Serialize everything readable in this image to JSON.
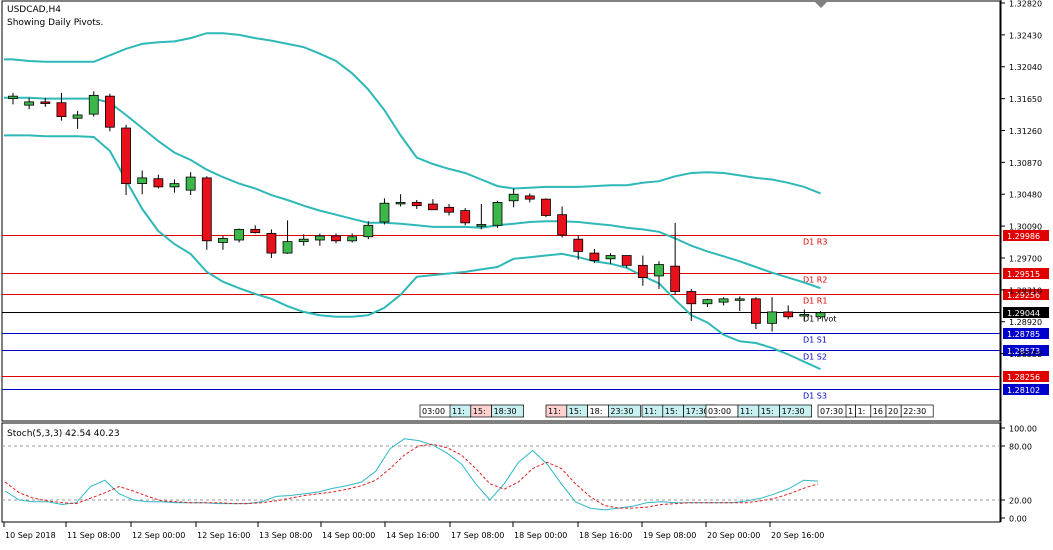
{
  "header": {
    "symbol": "USDCAD,H4",
    "subtitle": "Showing Daily Pivots."
  },
  "colors": {
    "bull": "#3cb84a",
    "bear": "#e8101a",
    "bollinger": "#2fb8b8",
    "resistance_line": "#e00000",
    "support_line": "#0000cc",
    "pivot_line": "#000000",
    "stoch_main": "#2fb8c8",
    "stoch_signal": "#e02020"
  },
  "chart_data": [
    {
      "type": "candlestick",
      "title": "USDCAD,H4",
      "ylim": [
        1.2795,
        1.3282
      ],
      "y_ticks": [
        1.3282,
        1.3243,
        1.3204,
        1.3165,
        1.3126,
        1.3087,
        1.3048,
        1.3009,
        1.297,
        1.2931,
        1.2892,
        1.2853
      ],
      "y_tick_labels": [
        "1.32820",
        "1.32430",
        "1.32040",
        "1.31650",
        "1.31260",
        "1.30870",
        "1.30480",
        "1.30090",
        "1.29700",
        "1.29310",
        "1.28920",
        "1.28530"
      ],
      "candles": [
        {
          "o": 1.3165,
          "h": 1.3172,
          "l": 1.3158,
          "c": 1.3168
        },
        {
          "o": 1.3157,
          "h": 1.3166,
          "l": 1.3152,
          "c": 1.3161
        },
        {
          "o": 1.3161,
          "h": 1.3166,
          "l": 1.3155,
          "c": 1.3159
        },
        {
          "o": 1.316,
          "h": 1.3172,
          "l": 1.3138,
          "c": 1.3143
        },
        {
          "o": 1.3141,
          "h": 1.315,
          "l": 1.3128,
          "c": 1.3145
        },
        {
          "o": 1.3146,
          "h": 1.3174,
          "l": 1.3143,
          "c": 1.3169
        },
        {
          "o": 1.3168,
          "h": 1.3171,
          "l": 1.3125,
          "c": 1.313
        },
        {
          "o": 1.3129,
          "h": 1.3133,
          "l": 1.3047,
          "c": 1.3061
        },
        {
          "o": 1.3061,
          "h": 1.3077,
          "l": 1.3048,
          "c": 1.3068
        },
        {
          "o": 1.3067,
          "h": 1.3072,
          "l": 1.3055,
          "c": 1.3057
        },
        {
          "o": 1.3057,
          "h": 1.3066,
          "l": 1.305,
          "c": 1.3061
        },
        {
          "o": 1.3053,
          "h": 1.3075,
          "l": 1.3047,
          "c": 1.3069
        },
        {
          "o": 1.3068,
          "h": 1.307,
          "l": 1.298,
          "c": 1.2991
        },
        {
          "o": 1.2989,
          "h": 1.2997,
          "l": 1.298,
          "c": 1.2994
        },
        {
          "o": 1.2992,
          "h": 1.3006,
          "l": 1.2989,
          "c": 1.3005
        },
        {
          "o": 1.3005,
          "h": 1.301,
          "l": 1.3,
          "c": 1.3001
        },
        {
          "o": 1.3,
          "h": 1.3005,
          "l": 1.297,
          "c": 1.2976
        },
        {
          "o": 1.2976,
          "h": 1.3016,
          "l": 1.2975,
          "c": 1.299
        },
        {
          "o": 1.299,
          "h": 1.2999,
          "l": 1.2985,
          "c": 1.2993
        },
        {
          "o": 1.2992,
          "h": 1.3,
          "l": 1.2985,
          "c": 1.2997
        },
        {
          "o": 1.2997,
          "h": 1.3,
          "l": 1.2988,
          "c": 1.2991
        },
        {
          "o": 1.2991,
          "h": 1.3,
          "l": 1.2989,
          "c": 1.2996
        },
        {
          "o": 1.2996,
          "h": 1.3015,
          "l": 1.2993,
          "c": 1.301
        },
        {
          "o": 1.3014,
          "h": 1.3043,
          "l": 1.3011,
          "c": 1.3037
        },
        {
          "o": 1.3037,
          "h": 1.3048,
          "l": 1.3033,
          "c": 1.3038
        },
        {
          "o": 1.3038,
          "h": 1.3041,
          "l": 1.303,
          "c": 1.3034
        },
        {
          "o": 1.3036,
          "h": 1.3042,
          "l": 1.3029,
          "c": 1.3029
        },
        {
          "o": 1.3032,
          "h": 1.3036,
          "l": 1.3022,
          "c": 1.3026
        },
        {
          "o": 1.3028,
          "h": 1.3031,
          "l": 1.301,
          "c": 1.3013
        },
        {
          "o": 1.3009,
          "h": 1.3036,
          "l": 1.3005,
          "c": 1.3011
        },
        {
          "o": 1.301,
          "h": 1.304,
          "l": 1.3007,
          "c": 1.3038
        },
        {
          "o": 1.304,
          "h": 1.3055,
          "l": 1.3032,
          "c": 1.3048
        },
        {
          "o": 1.3046,
          "h": 1.3049,
          "l": 1.3038,
          "c": 1.3042
        },
        {
          "o": 1.3042,
          "h": 1.3043,
          "l": 1.302,
          "c": 1.3022
        },
        {
          "o": 1.3023,
          "h": 1.3033,
          "l": 1.2995,
          "c": 1.2998
        },
        {
          "o": 1.2993,
          "h": 1.2998,
          "l": 1.2968,
          "c": 1.2978
        },
        {
          "o": 1.2976,
          "h": 1.2981,
          "l": 1.2964,
          "c": 1.2967
        },
        {
          "o": 1.2969,
          "h": 1.2976,
          "l": 1.2963,
          "c": 1.2973
        },
        {
          "o": 1.2973,
          "h": 1.2973,
          "l": 1.2958,
          "c": 1.2961
        },
        {
          "o": 1.2961,
          "h": 1.2973,
          "l": 1.2936,
          "c": 1.2946
        },
        {
          "o": 1.2948,
          "h": 1.2966,
          "l": 1.2932,
          "c": 1.2962
        },
        {
          "o": 1.296,
          "h": 1.3013,
          "l": 1.2925,
          "c": 1.2929
        },
        {
          "o": 1.2929,
          "h": 1.2932,
          "l": 1.2893,
          "c": 1.2914
        },
        {
          "o": 1.2914,
          "h": 1.292,
          "l": 1.291,
          "c": 1.2919
        },
        {
          "o": 1.2916,
          "h": 1.2922,
          "l": 1.2912,
          "c": 1.292
        },
        {
          "o": 1.292,
          "h": 1.2923,
          "l": 1.2905,
          "c": 1.292
        },
        {
          "o": 1.292,
          "h": 1.2922,
          "l": 1.2883,
          "c": 1.289
        },
        {
          "o": 1.289,
          "h": 1.2922,
          "l": 1.288,
          "c": 1.2904
        },
        {
          "o": 1.2904,
          "h": 1.2912,
          "l": 1.2895,
          "c": 1.2898
        },
        {
          "o": 1.2899,
          "h": 1.2907,
          "l": 1.2893,
          "c": 1.2901
        },
        {
          "o": 1.2898,
          "h": 1.2905,
          "l": 1.2896,
          "c": 1.2903
        }
      ],
      "bollinger": {
        "upper": [
          1.3213,
          1.3211,
          1.321,
          1.321,
          1.321,
          1.321,
          1.3218,
          1.3226,
          1.3232,
          1.3234,
          1.3235,
          1.3239,
          1.3245,
          1.3245,
          1.3243,
          1.3239,
          1.3236,
          1.3232,
          1.3228,
          1.322,
          1.3211,
          1.3196,
          1.3176,
          1.3151,
          1.312,
          1.3093,
          1.3085,
          1.3079,
          1.3074,
          1.3066,
          1.3058,
          1.3055,
          1.3056,
          1.3057,
          1.3057,
          1.3057,
          1.3058,
          1.3059,
          1.3059,
          1.3062,
          1.3064,
          1.307,
          1.3074,
          1.3075,
          1.3074,
          1.3071,
          1.3068,
          1.3066,
          1.3062,
          1.3057,
          1.3049
        ],
        "middle": [
          1.3166,
          1.3166,
          1.3165,
          1.3165,
          1.3165,
          1.3165,
          1.316,
          1.3145,
          1.3129,
          1.3113,
          1.3099,
          1.309,
          1.3078,
          1.3069,
          1.3061,
          1.3055,
          1.3047,
          1.3041,
          1.3034,
          1.3028,
          1.3023,
          1.3018,
          1.3013,
          1.3013,
          1.3012,
          1.301,
          1.3008,
          1.3008,
          1.3008,
          1.3007,
          1.301,
          1.3012,
          1.3014,
          1.3015,
          1.3015,
          1.3014,
          1.3012,
          1.301,
          1.3007,
          1.3005,
          1.3002,
          1.2994,
          1.2985,
          1.2978,
          1.2972,
          1.2966,
          1.2959,
          1.2952,
          1.2946,
          1.294,
          1.2933
        ],
        "lower": [
          1.312,
          1.312,
          1.3119,
          1.3119,
          1.3119,
          1.3118,
          1.3101,
          1.3065,
          1.303,
          1.3003,
          1.2987,
          1.2975,
          1.2953,
          1.2941,
          1.2933,
          1.2926,
          1.292,
          1.2911,
          1.2904,
          1.29,
          1.2898,
          1.2898,
          1.29,
          1.2909,
          1.2925,
          1.2947,
          1.2949,
          1.2951,
          1.2953,
          1.2956,
          1.2959,
          1.2969,
          1.2971,
          1.2973,
          1.2975,
          1.2971,
          1.2966,
          1.2963,
          1.2958,
          1.2948,
          1.2939,
          1.2919,
          1.29,
          1.2891,
          1.2876,
          1.2868,
          1.2866,
          1.286,
          1.2852,
          1.2843,
          1.2834
        ]
      },
      "pivot_levels": [
        {
          "label": "D1 R3",
          "price_label": "1.29986",
          "value": 1.29986,
          "kind": "resistance"
        },
        {
          "label": "D1 R2",
          "price_label": "1.29515",
          "value": 1.29515,
          "kind": "resistance"
        },
        {
          "label": "D1 R1",
          "price_label": "1.29256",
          "value": 1.29256,
          "kind": "resistance"
        },
        {
          "label": "D1 Pivot",
          "price_label": "1.29044",
          "value": 1.29044,
          "kind": "pivot"
        },
        {
          "label": "D1 S1",
          "price_label": "1.28785",
          "value": 1.28785,
          "kind": "support"
        },
        {
          "label": "D1 S2",
          "price_label": "1.28573",
          "value": 1.28573,
          "kind": "support"
        },
        {
          "label": "",
          "price_label": "1.28256",
          "value": 1.28256,
          "kind": "resistance"
        },
        {
          "label": "D1 S3",
          "price_label": "1.28102",
          "value": 1.28102,
          "kind": "support"
        }
      ],
      "session_markers": [
        {
          "segments": [
            {
              "text": "03:00",
              "bg": "#ffffff"
            }
          ]
        },
        {
          "segments": [
            {
              "text": "11:",
              "bg": "#c8f0f0"
            },
            {
              "text": "15:",
              "bg": "#ffd0d0"
            },
            {
              "text": "18:30",
              "bg": "#c8f0f0"
            }
          ]
        },
        {
          "segments": [
            {
              "text": "11:",
              "bg": "#ffd0d0"
            },
            {
              "text": "15:",
              "bg": "#c8f0f0"
            },
            {
              "text": "18:",
              "bg": "#ffffff"
            },
            {
              "text": "23:30",
              "bg": "#c8f0f0"
            }
          ]
        },
        {
          "segments": [
            {
              "text": "11:",
              "bg": "#c8f0f0"
            },
            {
              "text": "15:",
              "bg": "#c8f0f0"
            },
            {
              "text": "17:30",
              "bg": "#c8f0f0"
            }
          ]
        },
        {
          "segments": [
            {
              "text": "03:00",
              "bg": "#ffffff"
            }
          ]
        },
        {
          "segments": [
            {
              "text": "11:",
              "bg": "#c8f0f0"
            },
            {
              "text": "15:",
              "bg": "#c8f0f0"
            },
            {
              "text": "17:30",
              "bg": "#c8f0f0"
            }
          ]
        },
        {
          "segments": [
            {
              "text": "07:30",
              "bg": "#ffffff"
            }
          ]
        },
        {
          "segments": [
            {
              "text": "1",
              "bg": "#ffffff"
            },
            {
              "text": "1:",
              "bg": "#ffffff"
            },
            {
              "text": "16",
              "bg": "#ffffff"
            },
            {
              "text": "20",
              "bg": "#ffffff"
            },
            {
              "text": "22:30",
              "bg": "#ffffff"
            }
          ]
        }
      ]
    },
    {
      "type": "line",
      "title": "Stoch(5,3,3) 42.54 40.23",
      "ylim": [
        0,
        100
      ],
      "y_ticks": [
        100,
        80,
        20,
        0
      ],
      "y_tick_labels": [
        "100.00",
        "80.00",
        "20.00",
        "0.00"
      ],
      "levels": [
        80,
        20
      ],
      "series": [
        {
          "name": "main",
          "values": [
            30,
            20,
            18,
            18,
            15,
            17,
            35,
            42,
            27,
            20,
            18,
            18,
            17,
            17,
            17,
            16,
            16,
            16,
            18,
            24,
            25,
            27,
            29,
            33,
            36,
            40,
            52,
            77,
            88,
            86,
            81,
            72,
            60,
            38,
            20,
            38,
            62,
            75,
            60,
            38,
            18,
            11,
            9,
            11,
            13,
            17,
            18,
            17,
            17,
            17,
            17,
            17,
            19,
            22,
            27,
            33,
            42,
            41
          ]
        },
        {
          "name": "signal",
          "values": [
            40,
            28,
            22,
            19,
            17,
            16,
            22,
            28,
            35,
            30,
            24,
            19,
            18,
            17,
            17,
            17,
            16,
            16,
            17,
            19,
            22,
            25,
            27,
            29,
            32,
            36,
            42,
            55,
            70,
            80,
            82,
            78,
            70,
            55,
            38,
            32,
            40,
            55,
            62,
            55,
            38,
            24,
            14,
            11,
            11,
            12,
            15,
            16,
            17,
            17,
            17,
            17,
            17,
            19,
            22,
            27,
            33,
            38
          ]
        }
      ]
    }
  ],
  "x_axis_labels": [
    "10 Sep 2018",
    "11 Sep 08:00",
    "12 Sep 00:00",
    "12 Sep 16:00",
    "13 Sep 08:00",
    "14 Sep 00:00",
    "14 Sep 16:00",
    "17 Sep 08:00",
    "18 Sep 00:00",
    "18 Sep 16:00",
    "19 Sep 08:00",
    "20 Sep 00:00",
    "20 Sep 16:00"
  ]
}
